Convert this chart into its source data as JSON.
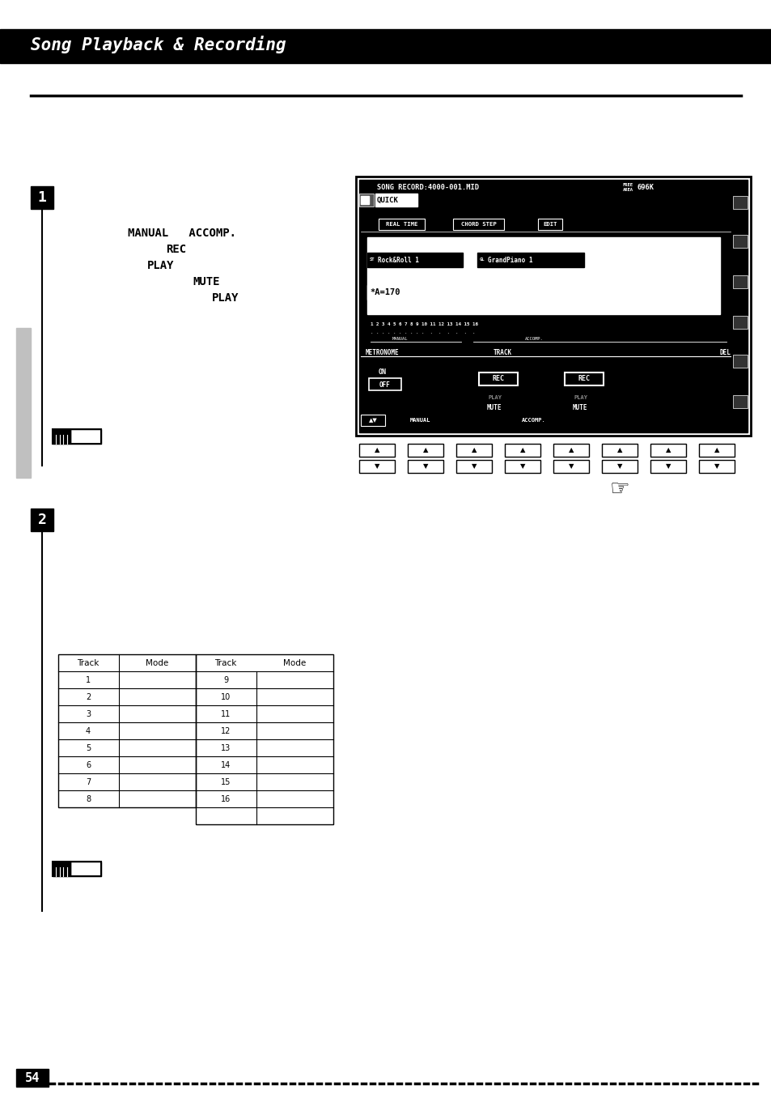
{
  "title": "Song Playback & Recording",
  "bg_color": "#ffffff",
  "header_bar_color": "#000000",
  "page_number": "54",
  "section1_label": "1",
  "section2_label": "2",
  "sidebar_color": "#c0c0c0",
  "screen_bg": "#000000",
  "screen_fg": "#ffffff",
  "table_col_headers": [
    "Track",
    "Mode",
    "Track",
    "Mode"
  ],
  "table_rows": [
    [
      "1",
      "9"
    ],
    [
      "2",
      "10"
    ],
    [
      "3",
      "11"
    ],
    [
      "4",
      "12"
    ],
    [
      "5",
      "13"
    ],
    [
      "6",
      "14"
    ],
    [
      "7",
      "15"
    ],
    [
      "8",
      "16"
    ]
  ]
}
